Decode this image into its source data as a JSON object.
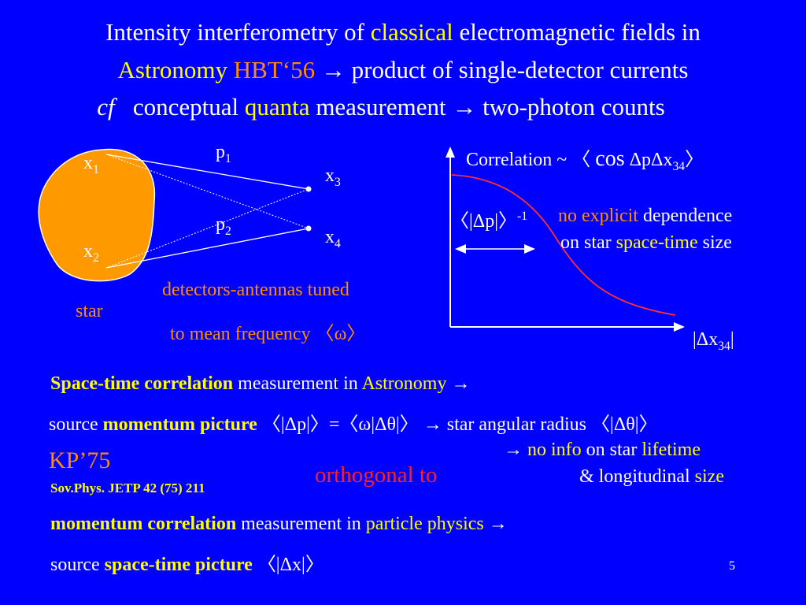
{
  "title": {
    "l1_a": "Intensity interferometry of ",
    "l1_b": "classical",
    "l1_c": " electromagnetic fields in",
    "l2_a": "Astronomy ",
    "l2_b": "HBT‘56",
    "l2_c": " → product of single-detector currents",
    "l3_a": "cf",
    "l3_b": "   conceptual ",
    "l3_c": "quanta",
    "l3_d": " measurement → two-photon counts"
  },
  "diagram": {
    "p1": "p",
    "p1_sub": "1",
    "p2": "p",
    "p2_sub": "2",
    "x1": "x",
    "x1_sub": "1",
    "x2": "x",
    "x2_sub": "2",
    "x3": "x",
    "x3_sub": "3",
    "x4": "x",
    "x4_sub": "4",
    "star": "star",
    "detectors_l1": "detectors-antennas tuned",
    "detectors_l2": "to mean frequency  〈ω〉",
    "star_color": "#ff9900"
  },
  "graph": {
    "corr_a": "Correlation ~ 〈 ",
    "corr_cos": "cos",
    "corr_b": " ΔpΔx",
    "corr_sub": "34",
    "corr_c": "〉",
    "width_label": "〈|Δp|〉",
    "width_sup": "-1",
    "note_l1_a": "no explicit",
    "note_l1_b": " dependence",
    "note_l2_a": "on star ",
    "note_l2_b": "space-time",
    "note_l2_c": " size",
    "xaxis_a": "|Δx",
    "xaxis_sub": "34",
    "xaxis_b": "|"
  },
  "section1": {
    "l1_a": "Space-time correlation",
    "l1_b": " measurement  in ",
    "l1_c": "Astronomy",
    "l1_d": " →",
    "l2_a": "source ",
    "l2_b": "momentum picture",
    "l2_c": " 〈|Δp|〉=〈ω|Δθ|〉 → star angular radius 〈|Δθ|〉",
    "l3_a": "→ ",
    "l3_b": "no info",
    "l3_c": " on star ",
    "l3_d": "lifetime",
    "l4_a": "& longitudinal ",
    "l4_b": "size"
  },
  "reference": {
    "kp": "KP’75",
    "journal": "Sov.Phys. JETP 42 (75) 211"
  },
  "orthogonal": "orthogonal to",
  "section2": {
    "l1_a": "momentum correlation",
    "l1_b": " measurement in ",
    "l1_c": "particle physics",
    "l1_d": " →",
    "l2_a": "source ",
    "l2_b": "space-time picture",
    "l2_c": " 〈|Δx|〉"
  },
  "page_number": "5"
}
